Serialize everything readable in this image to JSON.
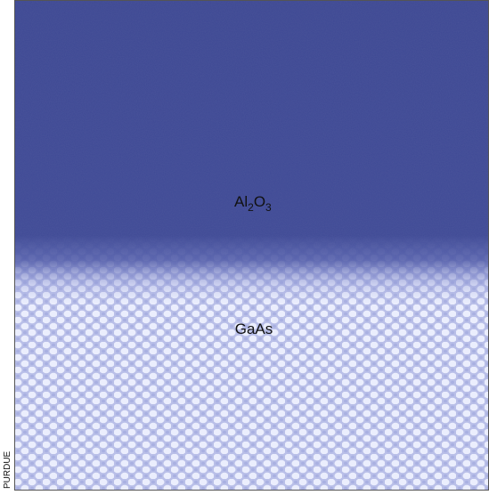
{
  "image": {
    "top_label": [
      "Al",
      "2",
      "O",
      "3"
    ],
    "bottom_label": "GaAs",
    "credit": "PURDUE"
  }
}
